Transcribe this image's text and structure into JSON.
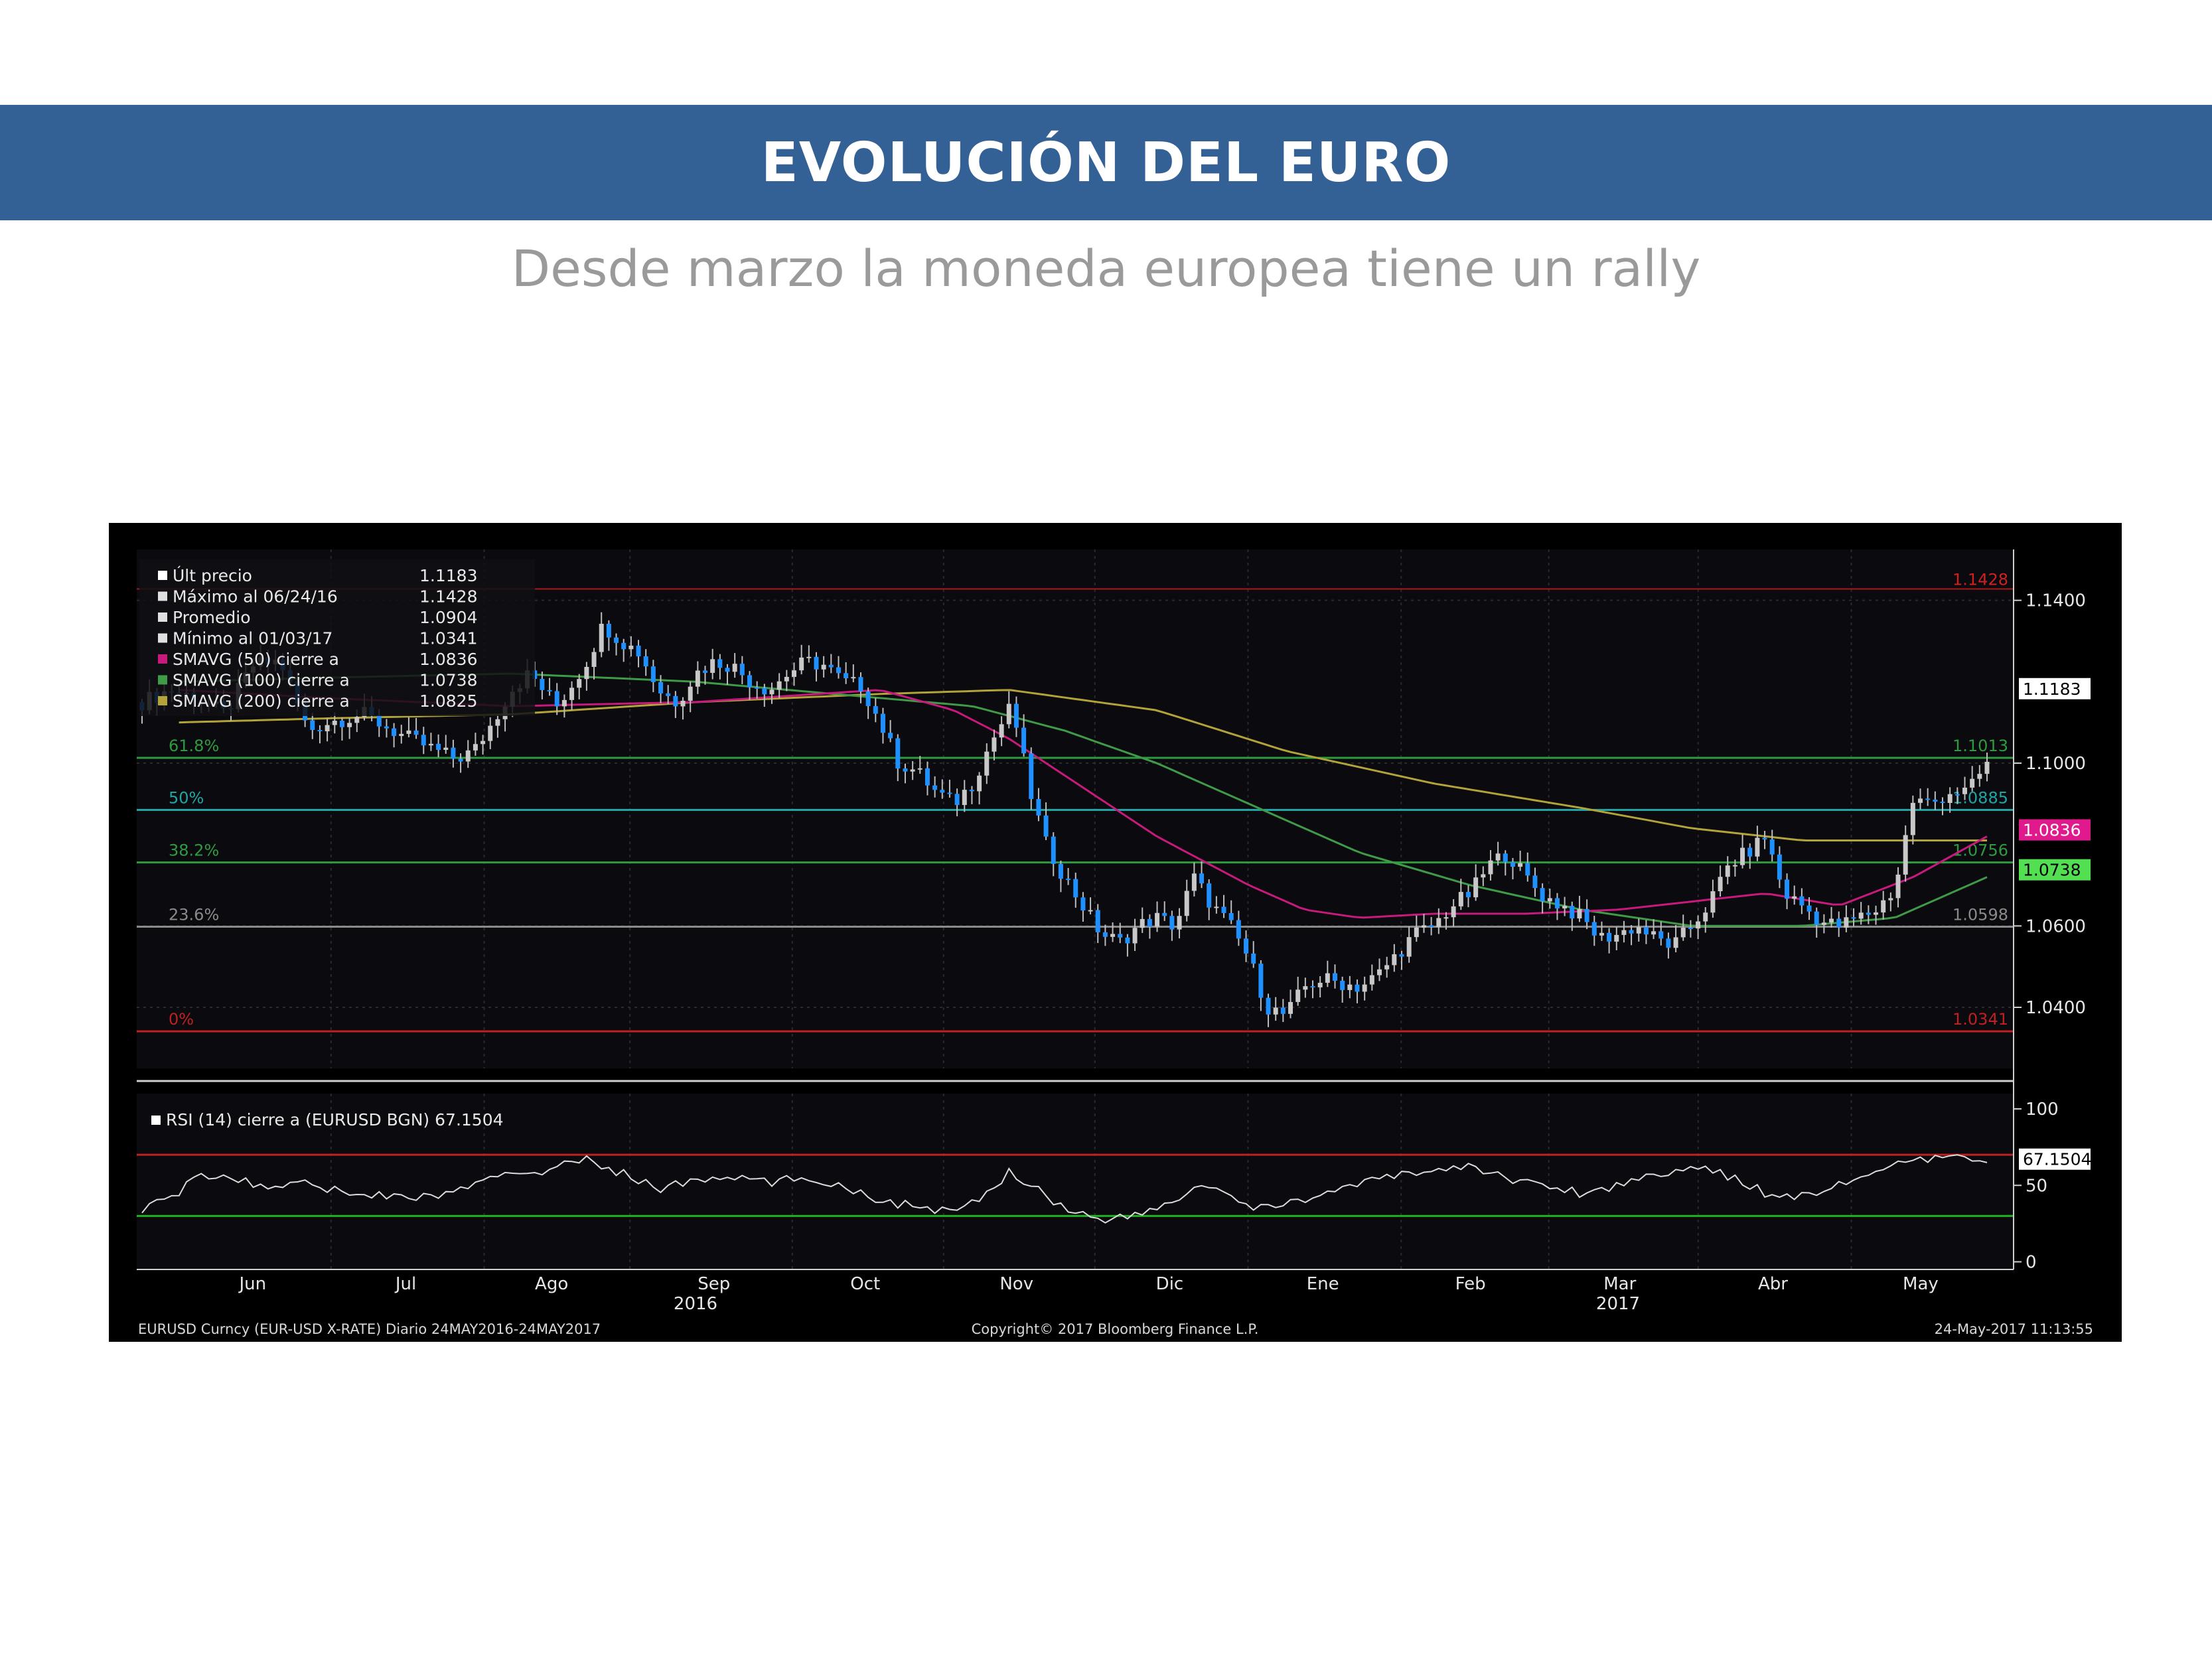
{
  "header": {
    "title": "EVOLUCIÓN DEL EURO",
    "subtitle": "Desde marzo la moneda europea tiene un rally"
  },
  "colors": {
    "banner": "#336195",
    "subtitle": "#9a9a9a",
    "chart_background": "#000000",
    "candle_up": "#c8c8c8",
    "candle_down": "#1e90ff",
    "smavg50": "#c8197c",
    "smavg100": "#3f9b47",
    "smavg200": "#b2a33a",
    "rsi_line": "#dcdcdc",
    "rsi_over": "#c02020",
    "rsi_under": "#20b020"
  },
  "chart_data": [
    {
      "type": "line",
      "subtype": "candlestick",
      "title": "",
      "ylim": [
        1.025,
        1.1525
      ],
      "grid": true,
      "y_ticks": [
        "1.1400",
        "1.1000",
        "1.0600",
        "1.0400"
      ],
      "legend_position": "top-left",
      "legend": [
        {
          "label": "Últ precio",
          "value": "1.1183"
        },
        {
          "label": "Máximo al 06/24/16",
          "value": "1.1428"
        },
        {
          "label": "Promedio",
          "value": "1.0904"
        },
        {
          "label": "Mínimo al 01/03/17",
          "value": "1.0341"
        },
        {
          "label": "SMAVG (50) cierre a",
          "value": "1.0836"
        },
        {
          "label": "SMAVG (100) cierre a",
          "value": "1.0738"
        },
        {
          "label": "SMAVG (200) cierre a",
          "value": "1.0825"
        }
      ],
      "fib_levels": [
        {
          "label": "61.8%",
          "value": 1.1013,
          "value_label": "1.1013",
          "color": "#2e9b3e"
        },
        {
          "label": "50%",
          "value": 1.0885,
          "value_label": "1.0885",
          "color": "#1fa5a5"
        },
        {
          "label": "38.2%",
          "value": 1.0756,
          "value_label": "1.0756",
          "color": "#2e9b3e"
        },
        {
          "label": "23.6%",
          "value": 1.0598,
          "value_label": "1.0598",
          "color": "#8a8a8a"
        },
        {
          "label": "0%",
          "value": 1.0341,
          "value_label": "1.0341",
          "color": "#c02020"
        }
      ],
      "max_line": {
        "value": 1.1428,
        "label": "1.1428"
      },
      "right_flags": [
        {
          "value": 1.1183,
          "label": "1.1183",
          "bg": "#ffffff",
          "fg": "#000000"
        },
        {
          "value": 1.0836,
          "label": "1.0836",
          "bg": "#e01a8c",
          "fg": "#ffffff"
        },
        {
          "value": 1.0738,
          "label": "1.0738",
          "bg": "#52e052",
          "fg": "#000000"
        }
      ],
      "months": [
        {
          "label": "Jun",
          "t": 0.06
        },
        {
          "label": "Jul",
          "t": 0.143
        },
        {
          "label": "Ago",
          "t": 0.222
        },
        {
          "label": "Sep",
          "t": 0.31
        },
        {
          "label": "Oct",
          "t": 0.392
        },
        {
          "label": "Nov",
          "t": 0.474
        },
        {
          "label": "Dic",
          "t": 0.557
        },
        {
          "label": "Ene",
          "t": 0.64
        },
        {
          "label": "Feb",
          "t": 0.72
        },
        {
          "label": "Mar",
          "t": 0.801
        },
        {
          "label": "Abr",
          "t": 0.884
        },
        {
          "label": "May",
          "t": 0.964
        }
      ],
      "years": [
        {
          "label": "2016",
          "t": 0.3
        },
        {
          "label": "2017",
          "t": 0.8
        }
      ],
      "price_keyframes": [
        [
          0,
          1.115
        ],
        [
          0.015,
          1.118
        ],
        [
          0.03,
          1.116
        ],
        [
          0.045,
          1.112
        ],
        [
          0.06,
          1.124
        ],
        [
          0.075,
          1.125
        ],
        [
          0.09,
          1.108
        ],
        [
          0.1,
          1.11
        ],
        [
          0.12,
          1.112
        ],
        [
          0.14,
          1.107
        ],
        [
          0.155,
          1.104
        ],
        [
          0.17,
          1.101
        ],
        [
          0.18,
          1.103
        ],
        [
          0.19,
          1.11
        ],
        [
          0.2,
          1.118
        ],
        [
          0.21,
          1.122
        ],
        [
          0.225,
          1.114
        ],
        [
          0.24,
          1.124
        ],
        [
          0.25,
          1.134
        ],
        [
          0.26,
          1.13
        ],
        [
          0.27,
          1.127
        ],
        [
          0.28,
          1.118
        ],
        [
          0.29,
          1.115
        ],
        [
          0.3,
          1.122
        ],
        [
          0.31,
          1.125
        ],
        [
          0.32,
          1.124
        ],
        [
          0.33,
          1.12
        ],
        [
          0.34,
          1.118
        ],
        [
          0.35,
          1.122
        ],
        [
          0.36,
          1.125
        ],
        [
          0.37,
          1.124
        ],
        [
          0.38,
          1.12
        ],
        [
          0.39,
          1.119
        ],
        [
          0.4,
          1.11
        ],
        [
          0.41,
          1.1
        ],
        [
          0.42,
          1.098
        ],
        [
          0.43,
          1.093
        ],
        [
          0.44,
          1.09
        ],
        [
          0.45,
          1.095
        ],
        [
          0.46,
          1.105
        ],
        [
          0.47,
          1.113
        ],
        [
          0.475,
          1.108
        ],
        [
          0.48,
          1.095
        ],
        [
          0.49,
          1.08
        ],
        [
          0.5,
          1.072
        ],
        [
          0.51,
          1.065
        ],
        [
          0.52,
          1.058
        ],
        [
          0.53,
          1.056
        ],
        [
          0.54,
          1.06
        ],
        [
          0.55,
          1.062
        ],
        [
          0.56,
          1.06
        ],
        [
          0.57,
          1.072
        ],
        [
          0.58,
          1.065
        ],
        [
          0.59,
          1.06
        ],
        [
          0.6,
          1.052
        ],
        [
          0.61,
          1.04
        ],
        [
          0.62,
          1.038
        ],
        [
          0.63,
          1.045
        ],
        [
          0.64,
          1.047
        ],
        [
          0.65,
          1.046
        ],
        [
          0.66,
          1.045
        ],
        [
          0.67,
          1.048
        ],
        [
          0.68,
          1.053
        ],
        [
          0.69,
          1.058
        ],
        [
          0.7,
          1.06
        ],
        [
          0.71,
          1.065
        ],
        [
          0.72,
          1.068
        ],
        [
          0.73,
          1.075
        ],
        [
          0.74,
          1.078
        ],
        [
          0.75,
          1.072
        ],
        [
          0.76,
          1.067
        ],
        [
          0.77,
          1.065
        ],
        [
          0.78,
          1.062
        ],
        [
          0.79,
          1.057
        ],
        [
          0.8,
          1.058
        ],
        [
          0.81,
          1.06
        ],
        [
          0.82,
          1.057
        ],
        [
          0.83,
          1.055
        ],
        [
          0.84,
          1.06
        ],
        [
          0.85,
          1.066
        ],
        [
          0.86,
          1.075
        ],
        [
          0.87,
          1.078
        ],
        [
          0.88,
          1.082
        ],
        [
          0.89,
          1.068
        ],
        [
          0.9,
          1.065
        ],
        [
          0.91,
          1.061
        ],
        [
          0.92,
          1.06
        ],
        [
          0.93,
          1.062
        ],
        [
          0.94,
          1.064
        ],
        [
          0.95,
          1.069
        ],
        [
          0.96,
          1.091
        ],
        [
          0.97,
          1.09
        ],
        [
          0.98,
          1.093
        ],
        [
          0.99,
          1.093
        ],
        [
          1.0,
          1.1
        ]
      ],
      "smavg50_keyframes": [
        [
          0.02,
          1.118
        ],
        [
          0.1,
          1.116
        ],
        [
          0.2,
          1.114
        ],
        [
          0.3,
          1.115
        ],
        [
          0.4,
          1.118
        ],
        [
          0.44,
          1.113
        ],
        [
          0.47,
          1.106
        ],
        [
          0.5,
          1.097
        ],
        [
          0.55,
          1.082
        ],
        [
          0.6,
          1.07
        ],
        [
          0.63,
          1.064
        ],
        [
          0.66,
          1.062
        ],
        [
          0.7,
          1.063
        ],
        [
          0.75,
          1.063
        ],
        [
          0.8,
          1.064
        ],
        [
          0.84,
          1.066
        ],
        [
          0.88,
          1.068
        ],
        [
          0.92,
          1.065
        ],
        [
          0.96,
          1.072
        ],
        [
          1.0,
          1.082
        ]
      ],
      "smavg100_keyframes": [
        [
          0.02,
          1.12
        ],
        [
          0.1,
          1.121
        ],
        [
          0.2,
          1.122
        ],
        [
          0.3,
          1.12
        ],
        [
          0.4,
          1.116
        ],
        [
          0.45,
          1.114
        ],
        [
          0.5,
          1.108
        ],
        [
          0.55,
          1.1
        ],
        [
          0.6,
          1.09
        ],
        [
          0.66,
          1.078
        ],
        [
          0.72,
          1.07
        ],
        [
          0.78,
          1.064
        ],
        [
          0.84,
          1.06
        ],
        [
          0.9,
          1.06
        ],
        [
          0.95,
          1.062
        ],
        [
          1.0,
          1.072
        ]
      ],
      "smavg200_keyframes": [
        [
          0.02,
          1.11
        ],
        [
          0.1,
          1.111
        ],
        [
          0.2,
          1.112
        ],
        [
          0.3,
          1.115
        ],
        [
          0.4,
          1.117
        ],
        [
          0.47,
          1.118
        ],
        [
          0.55,
          1.113
        ],
        [
          0.62,
          1.103
        ],
        [
          0.7,
          1.095
        ],
        [
          0.78,
          1.089
        ],
        [
          0.84,
          1.084
        ],
        [
          0.9,
          1.081
        ],
        [
          0.96,
          1.081
        ],
        [
          1.0,
          1.081
        ]
      ]
    },
    {
      "type": "line",
      "title": "",
      "legend": [
        {
          "label": "RSI (14) cierre a (EURUSD BGN)",
          "value": "67.1504"
        }
      ],
      "ylim": [
        -5,
        110
      ],
      "y_ticks": [
        "100",
        "50",
        "0"
      ],
      "overbought": 70,
      "oversold": 30,
      "last_value": 67.1504,
      "last_label": "67.1504",
      "rsi_keyframes": [
        [
          0,
          35
        ],
        [
          0.02,
          44
        ],
        [
          0.03,
          58
        ],
        [
          0.05,
          54
        ],
        [
          0.07,
          48
        ],
        [
          0.09,
          55
        ],
        [
          0.1,
          47
        ],
        [
          0.12,
          45
        ],
        [
          0.14,
          42
        ],
        [
          0.16,
          43
        ],
        [
          0.18,
          50
        ],
        [
          0.2,
          58
        ],
        [
          0.22,
          60
        ],
        [
          0.24,
          67
        ],
        [
          0.26,
          58
        ],
        [
          0.28,
          48
        ],
        [
          0.3,
          53
        ],
        [
          0.32,
          55
        ],
        [
          0.34,
          52
        ],
        [
          0.36,
          55
        ],
        [
          0.38,
          50
        ],
        [
          0.4,
          40
        ],
        [
          0.42,
          36
        ],
        [
          0.44,
          32
        ],
        [
          0.46,
          45
        ],
        [
          0.47,
          60
        ],
        [
          0.48,
          52
        ],
        [
          0.5,
          35
        ],
        [
          0.52,
          28
        ],
        [
          0.54,
          30
        ],
        [
          0.56,
          40
        ],
        [
          0.57,
          48
        ],
        [
          0.58,
          50
        ],
        [
          0.6,
          34
        ],
        [
          0.62,
          38
        ],
        [
          0.64,
          45
        ],
        [
          0.66,
          50
        ],
        [
          0.68,
          57
        ],
        [
          0.7,
          60
        ],
        [
          0.72,
          62
        ],
        [
          0.74,
          55
        ],
        [
          0.76,
          50
        ],
        [
          0.78,
          45
        ],
        [
          0.8,
          50
        ],
        [
          0.82,
          58
        ],
        [
          0.84,
          62
        ],
        [
          0.86,
          56
        ],
        [
          0.88,
          45
        ],
        [
          0.9,
          43
        ],
        [
          0.92,
          50
        ],
        [
          0.94,
          60
        ],
        [
          0.96,
          65
        ],
        [
          0.98,
          68
        ],
        [
          1.0,
          67
        ]
      ]
    }
  ],
  "footer": {
    "left": "EURUSD Curncy (EUR-USD X-RATE)  Diario 24MAY2016-24MAY2017",
    "center": "Copyright© 2017 Bloomberg Finance L.P.",
    "right": "24-May-2017 11:13:55"
  }
}
